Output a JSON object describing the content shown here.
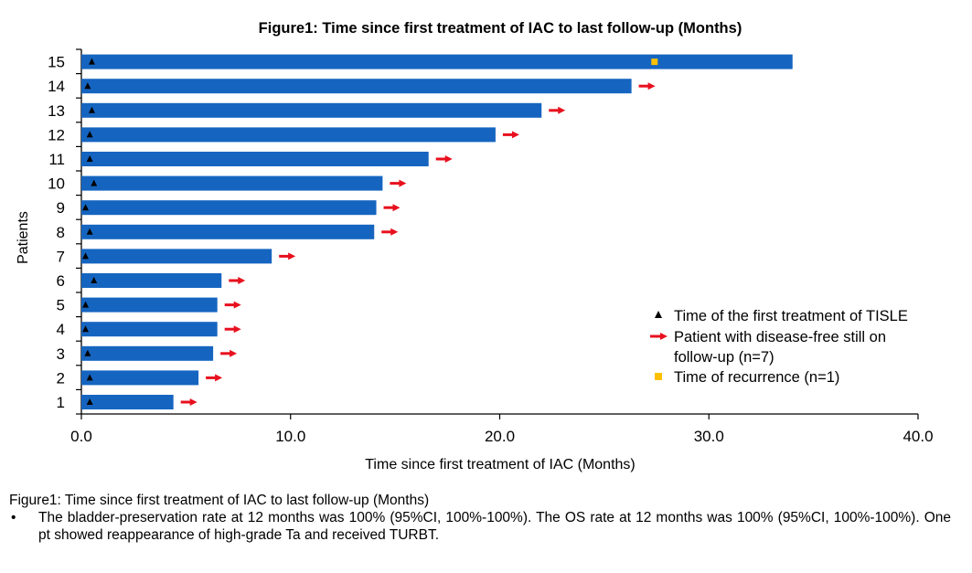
{
  "chart_data": {
    "type": "bar",
    "orientation": "horizontal",
    "title": "Figure1: Time since first treatment of IAC to last follow-up (Months)",
    "xlabel": "Time since first treatment of IAC (Months)",
    "ylabel": "Patients",
    "xlim": [
      0,
      40
    ],
    "xticks": [
      "0.0",
      "10.0",
      "20.0",
      "30.0",
      "40.0"
    ],
    "grid": false,
    "legend_position": "bottom-right",
    "bar_color": "#1565C0",
    "patients": [
      {
        "id": "1",
        "months": 4.4,
        "first_treatment": 0.4,
        "disease_free": true,
        "recurrence": null
      },
      {
        "id": "2",
        "months": 5.6,
        "first_treatment": 0.4,
        "disease_free": true,
        "recurrence": null
      },
      {
        "id": "3",
        "months": 6.3,
        "first_treatment": 0.3,
        "disease_free": true,
        "recurrence": null
      },
      {
        "id": "4",
        "months": 6.5,
        "first_treatment": 0.2,
        "disease_free": true,
        "recurrence": null
      },
      {
        "id": "5",
        "months": 6.5,
        "first_treatment": 0.2,
        "disease_free": true,
        "recurrence": null
      },
      {
        "id": "6",
        "months": 6.7,
        "first_treatment": 0.6,
        "disease_free": true,
        "recurrence": null
      },
      {
        "id": "7",
        "months": 9.1,
        "first_treatment": 0.2,
        "disease_free": true,
        "recurrence": null
      },
      {
        "id": "8",
        "months": 14.0,
        "first_treatment": 0.4,
        "disease_free": true,
        "recurrence": null
      },
      {
        "id": "9",
        "months": 14.1,
        "first_treatment": 0.2,
        "disease_free": true,
        "recurrence": null
      },
      {
        "id": "10",
        "months": 14.4,
        "first_treatment": 0.6,
        "disease_free": true,
        "recurrence": null
      },
      {
        "id": "11",
        "months": 16.6,
        "first_treatment": 0.4,
        "disease_free": true,
        "recurrence": null
      },
      {
        "id": "12",
        "months": 19.8,
        "first_treatment": 0.4,
        "disease_free": true,
        "recurrence": null
      },
      {
        "id": "13",
        "months": 22.0,
        "first_treatment": 0.5,
        "disease_free": true,
        "recurrence": null
      },
      {
        "id": "14",
        "months": 26.3,
        "first_treatment": 0.3,
        "disease_free": true,
        "recurrence": null
      },
      {
        "id": "15",
        "months": 34.0,
        "first_treatment": 0.5,
        "disease_free": false,
        "recurrence": 27.4
      }
    ],
    "legend": [
      {
        "marker": "triangle",
        "color": "#000000",
        "lines": [
          "Time of the first treatment of TISLE"
        ]
      },
      {
        "marker": "arrow",
        "color": "#E8101E",
        "lines": [
          "Patient with disease-free still on",
          "follow-up (n=7)"
        ]
      },
      {
        "marker": "square",
        "color": "#FFC000",
        "lines": [
          "Time of recurrence (n=1)"
        ]
      }
    ]
  },
  "caption": {
    "heading": "Figure1: Time since first treatment of IAC to last follow-up (Months)",
    "bullet": "•",
    "text": "The bladder-preservation rate at 12 months was 100% (95%CI, 100%-100%). The OS rate at 12 months was 100% (95%CI, 100%-100%). One pt showed reappearance of high-grade Ta and received TURBT."
  }
}
